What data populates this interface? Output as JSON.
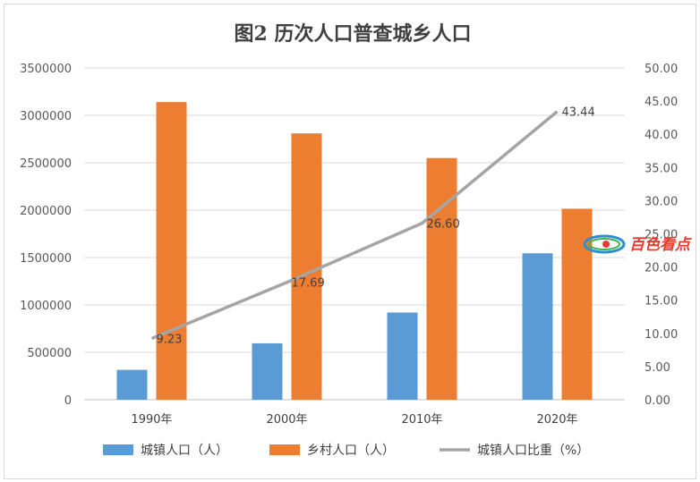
{
  "chart_data": {
    "type": "bar",
    "title": "图2 历次人口普查城乡人口",
    "categories": [
      "1990年",
      "2000年",
      "2010年",
      "2020年"
    ],
    "series": [
      {
        "name": "城镇人口（人）",
        "type": "bar",
        "axis": "left",
        "color": "#5b9bd5",
        "values": [
          315000,
          595000,
          920000,
          1545000
        ]
      },
      {
        "name": "乡村人口（人）",
        "type": "bar",
        "axis": "left",
        "color": "#ed7d31",
        "values": [
          3140000,
          2810000,
          2550000,
          2015000
        ]
      },
      {
        "name": "城镇人口比重（%）",
        "type": "line",
        "axis": "right",
        "color": "#a5a5a5",
        "values": [
          9.23,
          17.69,
          26.6,
          43.44
        ],
        "labels": [
          "9.23",
          "17.69",
          "26.60",
          "43.44"
        ]
      }
    ],
    "y_left": {
      "min": 0,
      "max": 3500000,
      "step": 500000,
      "ticks": [
        "0",
        "500000",
        "1000000",
        "1500000",
        "2000000",
        "2500000",
        "3000000",
        "3500000"
      ]
    },
    "y_right": {
      "min": 0,
      "max": 50,
      "step": 5,
      "ticks": [
        "0.00",
        "5.00",
        "10.00",
        "15.00",
        "20.00",
        "25.00",
        "30.00",
        "35.00",
        "40.00",
        "45.00",
        "50.00"
      ]
    },
    "grid": true,
    "legend": "bottom"
  },
  "watermark": {
    "text": "百色看点",
    "icon": "swirl-logo-icon"
  }
}
